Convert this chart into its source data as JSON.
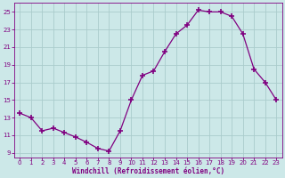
{
  "x": [
    0,
    1,
    2,
    3,
    4,
    5,
    6,
    7,
    8,
    9,
    10,
    11,
    12,
    13,
    14,
    15,
    16,
    17,
    18,
    19,
    20,
    21,
    22,
    23
  ],
  "y": [
    13.5,
    13.0,
    11.5,
    11.8,
    11.3,
    10.8,
    10.2,
    9.5,
    9.2,
    11.5,
    15.0,
    17.8,
    18.3,
    20.5,
    22.5,
    23.5,
    25.2,
    25.0,
    25.0,
    24.5,
    22.5,
    18.5,
    17.0,
    15.0
  ],
  "line_color": "#800080",
  "marker_color": "#800080",
  "bg_color": "#cce8e8",
  "grid_color": "#aacccc",
  "xlabel": "Windchill (Refroidissement éolien,°C)",
  "tick_color": "#800080",
  "ylim": [
    8.5,
    26.0
  ],
  "xlim": [
    -0.5,
    23.5
  ],
  "yticks": [
    9,
    11,
    13,
    15,
    17,
    19,
    21,
    23,
    25
  ],
  "xticks": [
    0,
    1,
    2,
    3,
    4,
    5,
    6,
    7,
    8,
    9,
    10,
    11,
    12,
    13,
    14,
    15,
    16,
    17,
    18,
    19,
    20,
    21,
    22,
    23
  ]
}
